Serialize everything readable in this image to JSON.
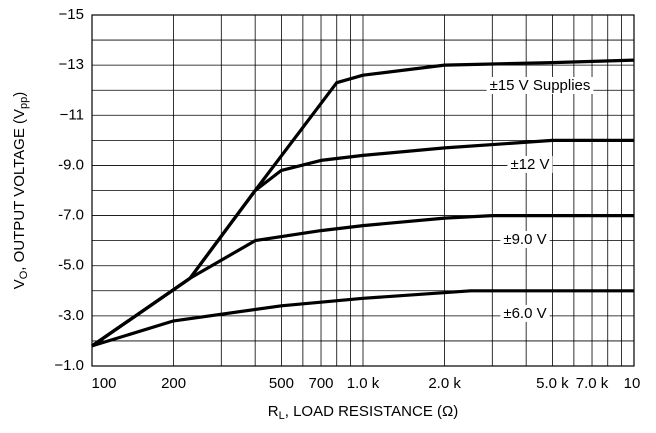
{
  "chart_data": {
    "type": "line",
    "x_label": [
      "R",
      "L",
      ", LOAD RESISTANCE (Ω)"
    ],
    "y_label": [
      "V",
      "O",
      ", OUTPUT VOLTAGE (V",
      "pp",
      ")"
    ],
    "log_x": true,
    "xlim": [
      100,
      10000
    ],
    "xticks": [
      100,
      200,
      500,
      700,
      {
        "value": 1000,
        "label": "1.0 k"
      },
      {
        "value": 2000,
        "label": "2.0 k"
      },
      {
        "value": 5000,
        "label": "5.0 k"
      },
      {
        "value": 7000,
        "label": "7.0 k"
      },
      {
        "value": 10000,
        "label": "10"
      }
    ],
    "x_minor_grid": [
      300,
      400,
      600,
      800,
      900,
      3000,
      4000,
      6000,
      8000,
      9000
    ],
    "ylim": [
      -1,
      -15
    ],
    "yticks": [
      {
        "value": -15,
        "label": "−15"
      },
      {
        "value": -13,
        "label": "−13"
      },
      {
        "value": -11,
        "label": "−11"
      },
      {
        "value": -9,
        "label": "-9.0"
      },
      {
        "value": -7,
        "label": "-7.0"
      },
      {
        "value": -5,
        "label": "-5.0"
      },
      {
        "value": -3,
        "label": "-3.0"
      },
      {
        "value": -1,
        "label": "−1.0"
      }
    ],
    "y_minor_grid": [
      -14,
      -12,
      -10,
      -8,
      -6,
      -4,
      -2
    ],
    "grid": true,
    "series": [
      {
        "name": "±15 V Supplies",
        "color": "#000000",
        "x": [
          100,
          230,
          400,
          800,
          1000,
          2000,
          5000,
          10000
        ],
        "values": [
          -1.8,
          -4.5,
          -8.0,
          -12.3,
          -12.6,
          -13.0,
          -13.1,
          -13.2
        ]
      },
      {
        "name": "±12 V",
        "color": "#000000",
        "x": [
          100,
          230,
          400,
          500,
          700,
          1000,
          2000,
          5000,
          10000
        ],
        "values": [
          -1.8,
          -4.5,
          -8.0,
          -8.8,
          -9.2,
          -9.4,
          -9.7,
          -10.0,
          -10.0
        ]
      },
      {
        "name": "±9.0 V",
        "color": "#000000",
        "x": [
          100,
          230,
          400,
          700,
          1000,
          2000,
          3000,
          10000
        ],
        "values": [
          -1.8,
          -4.5,
          -6.0,
          -6.4,
          -6.6,
          -6.9,
          -7.0,
          -7.0
        ]
      },
      {
        "name": "±6.0 V",
        "color": "#000000",
        "x": [
          100,
          200,
          500,
          1000,
          2500,
          10000
        ],
        "values": [
          -1.8,
          -2.8,
          -3.4,
          -3.7,
          -4.0,
          -4.0
        ]
      }
    ]
  }
}
